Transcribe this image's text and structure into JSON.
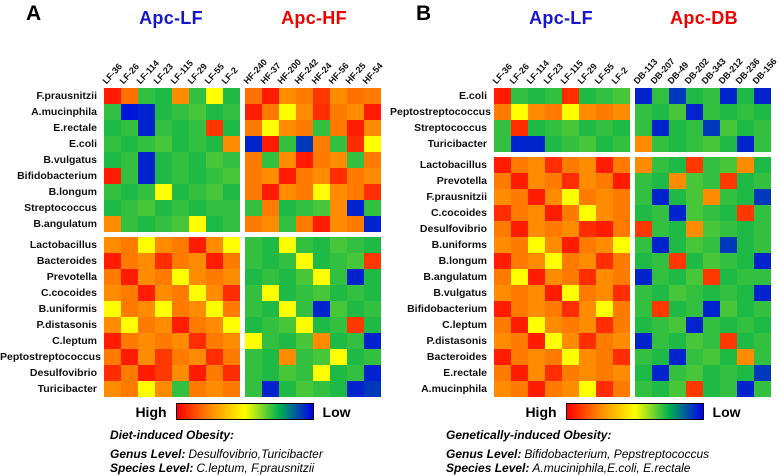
{
  "legend": {
    "high_label": "High",
    "low_label": "Low"
  },
  "colormap_stops": [
    "#0000ee",
    "#00b050",
    "#ffff00",
    "#ff8c00",
    "#ff0000"
  ],
  "chart_data": [
    {
      "type": "heatmap",
      "letter": "A",
      "groups": [
        {
          "label": "Apc-LF",
          "color": "#1515cc"
        },
        {
          "label": "Apc-HF",
          "color": "#ee0000"
        }
      ],
      "columns": [
        "LF-36",
        "LF-26",
        "LF-114",
        "LF-23",
        "LF-115",
        "LF-29",
        "LF-55",
        "LF-2",
        "HF-240",
        "HF-37",
        "HF-200",
        "HF-242",
        "HF-24",
        "HF-56",
        "HF-25",
        "HF-54"
      ],
      "rows": [
        "F.prausnitzii",
        "A.mucinphila",
        "E.rectale",
        "E.coli",
        "B.vulgatus",
        "Bifidobacterium",
        "B.longum",
        "Streptococcus",
        "B.angulatum",
        "Lactobacillus",
        "Bacteroides",
        "Prevotella",
        "C.cocoides",
        "B.uniformis",
        "P.distasonis",
        "C.leptum",
        "Peptostreptococcus",
        "Desulfovibrio",
        "Turicibacter"
      ],
      "col_gap_after": 7,
      "row_gap_after": 8,
      "value_meaning": "1=High(red) 0=Low(blue)",
      "values": [
        [
          0.95,
          0.8,
          0.3,
          0.28,
          0.75,
          0.3,
          0.5,
          0.28,
          0.8,
          0.95,
          0.75,
          0.78,
          0.9,
          0.75,
          0.8,
          0.78
        ],
        [
          0.3,
          0.03,
          0.05,
          0.28,
          0.3,
          0.32,
          0.28,
          0.3,
          0.95,
          0.78,
          0.5,
          0.75,
          0.92,
          0.78,
          0.75,
          0.95
        ],
        [
          0.28,
          0.3,
          0.05,
          0.3,
          0.28,
          0.3,
          0.9,
          0.28,
          0.78,
          0.5,
          0.75,
          0.78,
          0.3,
          0.78,
          0.95,
          0.75
        ],
        [
          0.3,
          0.28,
          0.3,
          0.32,
          0.28,
          0.3,
          0.28,
          0.75,
          0.05,
          0.95,
          0.3,
          0.08,
          0.78,
          0.3,
          0.92,
          0.5
        ],
        [
          0.28,
          0.3,
          0.05,
          0.28,
          0.3,
          0.28,
          0.32,
          0.3,
          0.78,
          0.3,
          0.75,
          0.95,
          0.78,
          0.75,
          0.3,
          0.78
        ],
        [
          0.95,
          0.3,
          0.05,
          0.28,
          0.3,
          0.28,
          0.3,
          0.32,
          0.78,
          0.75,
          0.95,
          0.78,
          0.75,
          0.92,
          0.78,
          0.75
        ],
        [
          0.3,
          0.28,
          0.3,
          0.5,
          0.28,
          0.3,
          0.32,
          0.28,
          0.78,
          0.95,
          0.75,
          0.78,
          0.5,
          0.75,
          0.78,
          0.92
        ],
        [
          0.28,
          0.3,
          0.32,
          0.28,
          0.3,
          0.28,
          0.3,
          0.3,
          0.3,
          0.78,
          0.28,
          0.3,
          0.32,
          0.75,
          0.05,
          0.3
        ],
        [
          0.75,
          0.3,
          0.28,
          0.3,
          0.32,
          0.5,
          0.28,
          0.3,
          0.78,
          0.75,
          0.3,
          0.78,
          0.95,
          0.75,
          0.78,
          0.05
        ],
        [
          0.75,
          0.78,
          0.5,
          0.75,
          0.78,
          0.95,
          0.75,
          0.5,
          0.3,
          0.28,
          0.5,
          0.3,
          0.28,
          0.32,
          0.3,
          0.28
        ],
        [
          0.95,
          0.78,
          0.75,
          0.92,
          0.78,
          0.75,
          0.95,
          0.78,
          0.3,
          0.28,
          0.3,
          0.5,
          0.28,
          0.3,
          0.32,
          0.9
        ],
        [
          0.78,
          0.95,
          0.75,
          0.78,
          0.5,
          0.75,
          0.78,
          0.75,
          0.28,
          0.3,
          0.28,
          0.32,
          0.5,
          0.3,
          0.05,
          0.28
        ],
        [
          0.75,
          0.78,
          0.95,
          0.75,
          0.78,
          0.5,
          0.75,
          0.92,
          0.3,
          0.5,
          0.28,
          0.3,
          0.32,
          0.28,
          0.3,
          0.28
        ],
        [
          0.5,
          0.78,
          0.75,
          0.5,
          0.78,
          0.75,
          0.5,
          0.78,
          0.3,
          0.28,
          0.5,
          0.3,
          0.05,
          0.32,
          0.28,
          0.3
        ],
        [
          0.75,
          0.5,
          0.78,
          0.75,
          0.95,
          0.78,
          0.75,
          0.5,
          0.28,
          0.3,
          0.32,
          0.5,
          0.28,
          0.3,
          0.9,
          0.28
        ],
        [
          0.95,
          0.78,
          0.75,
          0.78,
          0.75,
          0.92,
          0.78,
          0.75,
          0.5,
          0.3,
          0.28,
          0.32,
          0.75,
          0.28,
          0.3,
          0.05
        ],
        [
          0.78,
          0.95,
          0.75,
          0.9,
          0.78,
          0.75,
          0.92,
          0.78,
          0.3,
          0.28,
          0.75,
          0.3,
          0.32,
          0.5,
          0.28,
          0.3
        ],
        [
          0.92,
          0.78,
          0.95,
          0.9,
          0.75,
          0.95,
          0.78,
          0.92,
          0.3,
          0.28,
          0.32,
          0.3,
          0.5,
          0.28,
          0.3,
          0.05
        ],
        [
          0.75,
          0.78,
          0.5,
          0.75,
          0.3,
          0.78,
          0.75,
          0.78,
          0.3,
          0.05,
          0.28,
          0.32,
          0.3,
          0.28,
          0.05,
          0.08
        ]
      ],
      "caption": {
        "title": "Diet-induced Obesity:",
        "genus_label": "Genus Level:",
        "genus_value": "Desulfovibrio,Turicibacter",
        "species_label": "Species Level:",
        "species_value": "C.leptum, F.prausnitzii"
      }
    },
    {
      "type": "heatmap",
      "letter": "B",
      "groups": [
        {
          "label": "Apc-LF",
          "color": "#1515cc"
        },
        {
          "label": "Apc-DB",
          "color": "#ee0000"
        }
      ],
      "columns": [
        "LF-36",
        "LF-26",
        "LF-114",
        "LF-23",
        "LF-115",
        "LF-29",
        "LF-55",
        "LF-2",
        "DB-113",
        "DB-207",
        "DB-49",
        "DB-202",
        "DB-343",
        "DB-212",
        "DB-236",
        "DB-156"
      ],
      "rows": [
        "E.coli",
        "Peptostreptococcus",
        "Streptococcus",
        "Turicibacter",
        "Lactobacillus",
        "Prevotella",
        "F.prausnitzii",
        "C.cocoides",
        "Desulfovibrio",
        "B.uniforms",
        "B.longum",
        "B.angulatum",
        "B.vulgatus",
        "Bifidobacterium",
        "C.leptum",
        "P.distasonis",
        "Bacteroides",
        "E.rectale",
        "A.mucinphila"
      ],
      "col_gap_after": 7,
      "row_gap_after": 3,
      "value_meaning": "1=High(red) 0=Low(blue)",
      "values": [
        [
          0.95,
          0.3,
          0.28,
          0.3,
          0.92,
          0.28,
          0.3,
          0.32,
          0.05,
          0.3,
          0.08,
          0.28,
          0.3,
          0.05,
          0.28,
          0.05
        ],
        [
          0.78,
          0.5,
          0.75,
          0.78,
          0.5,
          0.75,
          0.78,
          0.75,
          0.3,
          0.28,
          0.32,
          0.05,
          0.3,
          0.28,
          0.3,
          0.28
        ],
        [
          0.3,
          0.92,
          0.28,
          0.3,
          0.32,
          0.28,
          0.3,
          0.28,
          0.3,
          0.05,
          0.28,
          0.3,
          0.08,
          0.32,
          0.28,
          0.3
        ],
        [
          0.3,
          0.05,
          0.05,
          0.28,
          0.3,
          0.32,
          0.28,
          0.3,
          0.75,
          0.3,
          0.28,
          0.3,
          0.32,
          0.28,
          0.05,
          0.3
        ],
        [
          0.95,
          0.78,
          0.75,
          0.92,
          0.78,
          0.75,
          0.95,
          0.78,
          0.75,
          0.3,
          0.28,
          0.9,
          0.3,
          0.32,
          0.75,
          0.28
        ],
        [
          0.78,
          0.95,
          0.75,
          0.78,
          0.92,
          0.75,
          0.78,
          0.95,
          0.3,
          0.28,
          0.75,
          0.32,
          0.3,
          0.9,
          0.28,
          0.3
        ],
        [
          0.75,
          0.78,
          0.95,
          0.75,
          0.5,
          0.78,
          0.75,
          0.78,
          0.3,
          0.05,
          0.28,
          0.32,
          0.75,
          0.3,
          0.28,
          0.08
        ],
        [
          0.92,
          0.78,
          0.75,
          0.95,
          0.78,
          0.5,
          0.75,
          0.78,
          0.28,
          0.3,
          0.05,
          0.32,
          0.3,
          0.28,
          0.9,
          0.3
        ],
        [
          0.78,
          0.95,
          0.75,
          0.78,
          0.75,
          0.92,
          0.95,
          0.78,
          0.9,
          0.3,
          0.28,
          0.75,
          0.32,
          0.3,
          0.28,
          0.3
        ],
        [
          0.75,
          0.78,
          0.5,
          0.75,
          0.95,
          0.78,
          0.75,
          0.5,
          0.3,
          0.05,
          0.28,
          0.32,
          0.3,
          0.08,
          0.28,
          0.3
        ],
        [
          0.95,
          0.78,
          0.75,
          0.5,
          0.78,
          0.75,
          0.92,
          0.78,
          0.28,
          0.3,
          0.9,
          0.28,
          0.32,
          0.3,
          0.28,
          0.05
        ],
        [
          0.78,
          0.5,
          0.95,
          0.75,
          0.78,
          0.92,
          0.75,
          0.78,
          0.05,
          0.3,
          0.28,
          0.32,
          0.9,
          0.28,
          0.3,
          0.3
        ],
        [
          0.75,
          0.78,
          0.75,
          0.95,
          0.5,
          0.78,
          0.75,
          0.92,
          0.3,
          0.28,
          0.32,
          0.3,
          0.28,
          0.3,
          0.28,
          0.05
        ],
        [
          0.95,
          0.78,
          0.75,
          0.78,
          0.92,
          0.75,
          0.5,
          0.78,
          0.3,
          0.9,
          0.28,
          0.3,
          0.05,
          0.32,
          0.28,
          0.3
        ],
        [
          0.78,
          0.95,
          0.5,
          0.75,
          0.78,
          0.75,
          0.92,
          0.78,
          0.28,
          0.3,
          0.32,
          0.05,
          0.3,
          0.28,
          0.3,
          0.28
        ],
        [
          0.75,
          0.78,
          0.95,
          0.5,
          0.75,
          0.92,
          0.78,
          0.75,
          0.05,
          0.3,
          0.28,
          0.32,
          0.3,
          0.9,
          0.28,
          0.3
        ],
        [
          0.95,
          0.78,
          0.75,
          0.78,
          0.5,
          0.75,
          0.78,
          0.92,
          0.3,
          0.28,
          0.05,
          0.3,
          0.32,
          0.28,
          0.75,
          0.3
        ],
        [
          0.78,
          0.95,
          0.75,
          0.92,
          0.78,
          0.75,
          0.78,
          0.75,
          0.28,
          0.05,
          0.3,
          0.32,
          0.28,
          0.3,
          0.28,
          0.08
        ],
        [
          0.75,
          0.78,
          0.95,
          0.78,
          0.75,
          0.5,
          0.92,
          0.78,
          0.3,
          0.28,
          0.32,
          0.9,
          0.28,
          0.3,
          0.05,
          0.3
        ]
      ],
      "caption": {
        "title": "Genetically-induced Obesity:",
        "genus_label": "Genus Level:",
        "genus_value": "Bifidobacterium, Pepstreptococcus",
        "species_label": "Species Level:",
        "species_value": "A.muciniphila,E.coli, E.rectale"
      }
    }
  ]
}
